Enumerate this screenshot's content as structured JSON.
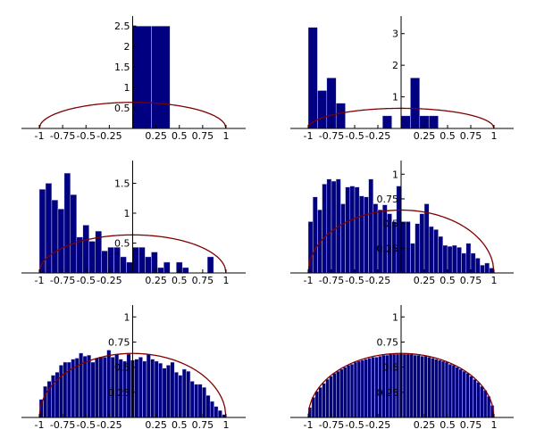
{
  "colors": {
    "bar": "#000080",
    "curve": "#800000"
  },
  "chart_data": [
    {
      "type": "bar",
      "xlim": [
        -1,
        1
      ],
      "ylim": [
        0,
        2.7
      ],
      "xticks": [
        "-1",
        "-0.75",
        "-0.5",
        "-0.25",
        "0.25",
        "0.5",
        "0.75",
        "1"
      ],
      "yticks": [
        "0.5",
        "1",
        "1.5",
        "2",
        "2.5"
      ],
      "bins": [
        {
          "x0": 0.0,
          "x1": 0.2,
          "y": 2.5
        },
        {
          "x0": 0.2,
          "x1": 0.4,
          "y": 2.5
        }
      ],
      "curve": "semicircle"
    },
    {
      "type": "bar",
      "xlim": [
        -1,
        1
      ],
      "ylim": [
        0,
        3.5
      ],
      "xticks": [
        "-1",
        "-0.75",
        "-0.5",
        "-0.25",
        "0.25",
        "0.5",
        "0.75",
        "1"
      ],
      "yticks": [
        "1",
        "2",
        "3"
      ],
      "bins": [
        {
          "x0": -1.0,
          "x1": -0.9,
          "y": 3.2
        },
        {
          "x0": -0.9,
          "x1": -0.8,
          "y": 1.2
        },
        {
          "x0": -0.8,
          "x1": -0.7,
          "y": 1.6
        },
        {
          "x0": -0.7,
          "x1": -0.6,
          "y": 0.8
        },
        {
          "x0": -0.2,
          "x1": -0.1,
          "y": 0.4
        },
        {
          "x0": 0.0,
          "x1": 0.1,
          "y": 0.4
        },
        {
          "x0": 0.1,
          "x1": 0.2,
          "y": 1.6
        },
        {
          "x0": 0.2,
          "x1": 0.3,
          "y": 0.4
        },
        {
          "x0": 0.3,
          "x1": 0.4,
          "y": 0.4
        }
      ],
      "curve": "semicircle"
    },
    {
      "type": "bar",
      "xlim": [
        -1,
        1
      ],
      "ylim": [
        0,
        1.85
      ],
      "xticks": [
        "-1",
        "-0.75",
        "-0.5",
        "-0.25",
        "0.25",
        "0.5",
        "0.75",
        "1"
      ],
      "yticks": [
        "0.5",
        "1",
        "1.5"
      ],
      "bins": [
        {
          "x0": -1.0,
          "x1": -0.933,
          "y": 1.4
        },
        {
          "x0": -0.933,
          "x1": -0.867,
          "y": 1.5
        },
        {
          "x0": -0.867,
          "x1": -0.8,
          "y": 1.22
        },
        {
          "x0": -0.8,
          "x1": -0.733,
          "y": 1.07
        },
        {
          "x0": -0.733,
          "x1": -0.667,
          "y": 1.67
        },
        {
          "x0": -0.667,
          "x1": -0.6,
          "y": 1.31
        },
        {
          "x0": -0.6,
          "x1": -0.533,
          "y": 0.6
        },
        {
          "x0": -0.533,
          "x1": -0.467,
          "y": 0.8
        },
        {
          "x0": -0.467,
          "x1": -0.4,
          "y": 0.53
        },
        {
          "x0": -0.4,
          "x1": -0.333,
          "y": 0.7
        },
        {
          "x0": -0.333,
          "x1": -0.267,
          "y": 0.37
        },
        {
          "x0": -0.267,
          "x1": -0.2,
          "y": 0.43
        },
        {
          "x0": -0.2,
          "x1": -0.133,
          "y": 0.43
        },
        {
          "x0": -0.133,
          "x1": -0.067,
          "y": 0.27
        },
        {
          "x0": -0.067,
          "x1": 0.0,
          "y": 0.18
        },
        {
          "x0": 0.0,
          "x1": 0.067,
          "y": 0.43
        },
        {
          "x0": 0.067,
          "x1": 0.133,
          "y": 0.43
        },
        {
          "x0": 0.133,
          "x1": 0.2,
          "y": 0.27
        },
        {
          "x0": 0.2,
          "x1": 0.267,
          "y": 0.35
        },
        {
          "x0": 0.267,
          "x1": 0.333,
          "y": 0.09
        },
        {
          "x0": 0.333,
          "x1": 0.4,
          "y": 0.18
        },
        {
          "x0": 0.467,
          "x1": 0.533,
          "y": 0.18
        },
        {
          "x0": 0.533,
          "x1": 0.6,
          "y": 0.09
        },
        {
          "x0": 0.8,
          "x1": 0.867,
          "y": 0.27
        }
      ],
      "curve": "semicircle"
    },
    {
      "type": "bar",
      "xlim": [
        -1,
        1
      ],
      "ylim": [
        0,
        1.12
      ],
      "xticks": [
        "-1",
        "-0.75",
        "-0.5",
        "-0.25",
        "0.25",
        "0.5",
        "0.75",
        "1"
      ],
      "yticks": [
        "0.25",
        "0.5",
        "0.75",
        "1"
      ],
      "values": [
        0.52,
        0.77,
        0.64,
        0.9,
        0.95,
        0.93,
        0.95,
        0.7,
        0.87,
        0.88,
        0.87,
        0.78,
        0.77,
        0.95,
        0.7,
        0.64,
        0.69,
        0.6,
        0.52,
        0.88,
        0.52,
        0.52,
        0.3,
        0.5,
        0.6,
        0.7,
        0.47,
        0.44,
        0.37,
        0.28,
        0.27,
        0.28,
        0.26,
        0.2,
        0.3,
        0.2,
        0.15,
        0.08,
        0.1,
        0.05
      ],
      "curve": "semicircle"
    },
    {
      "type": "bar",
      "xlim": [
        -1,
        1
      ],
      "ylim": [
        0,
        1.1
      ],
      "xticks": [
        "-1",
        "-0.75",
        "-0.5",
        "-0.25",
        "0.25",
        "0.5",
        "0.75",
        "1"
      ],
      "yticks": [
        "0.25",
        "0.5",
        "0.75",
        "1"
      ],
      "values": [
        0.18,
        0.31,
        0.36,
        0.42,
        0.45,
        0.52,
        0.55,
        0.55,
        0.58,
        0.59,
        0.64,
        0.61,
        0.62,
        0.55,
        0.59,
        0.6,
        0.6,
        0.67,
        0.6,
        0.63,
        0.58,
        0.56,
        0.63,
        0.57,
        0.58,
        0.6,
        0.56,
        0.63,
        0.58,
        0.56,
        0.54,
        0.49,
        0.52,
        0.55,
        0.45,
        0.42,
        0.48,
        0.46,
        0.36,
        0.33,
        0.33,
        0.3,
        0.22,
        0.16,
        0.11,
        0.07,
        0.03
      ],
      "curve": "semicircle"
    },
    {
      "type": "bar",
      "xlim": [
        -1,
        1
      ],
      "ylim": [
        0,
        1.1
      ],
      "xticks": [
        "-1",
        "-0.75",
        "-0.5",
        "-0.25",
        "0.25",
        "0.5",
        "0.75",
        "1"
      ],
      "yticks": [
        "0.25",
        "0.5",
        "0.75",
        "1"
      ],
      "values": [
        0.1,
        0.2,
        0.26,
        0.3,
        0.34,
        0.38,
        0.41,
        0.44,
        0.46,
        0.48,
        0.5,
        0.52,
        0.53,
        0.55,
        0.56,
        0.57,
        0.58,
        0.59,
        0.6,
        0.6,
        0.61,
        0.62,
        0.62,
        0.63,
        0.63,
        0.63,
        0.64,
        0.63,
        0.63,
        0.63,
        0.62,
        0.62,
        0.61,
        0.61,
        0.6,
        0.59,
        0.58,
        0.57,
        0.56,
        0.55,
        0.53,
        0.52,
        0.5,
        0.48,
        0.46,
        0.44,
        0.41,
        0.38,
        0.35,
        0.31,
        0.27,
        0.21,
        0.12
      ],
      "curve": "semicircle"
    }
  ]
}
